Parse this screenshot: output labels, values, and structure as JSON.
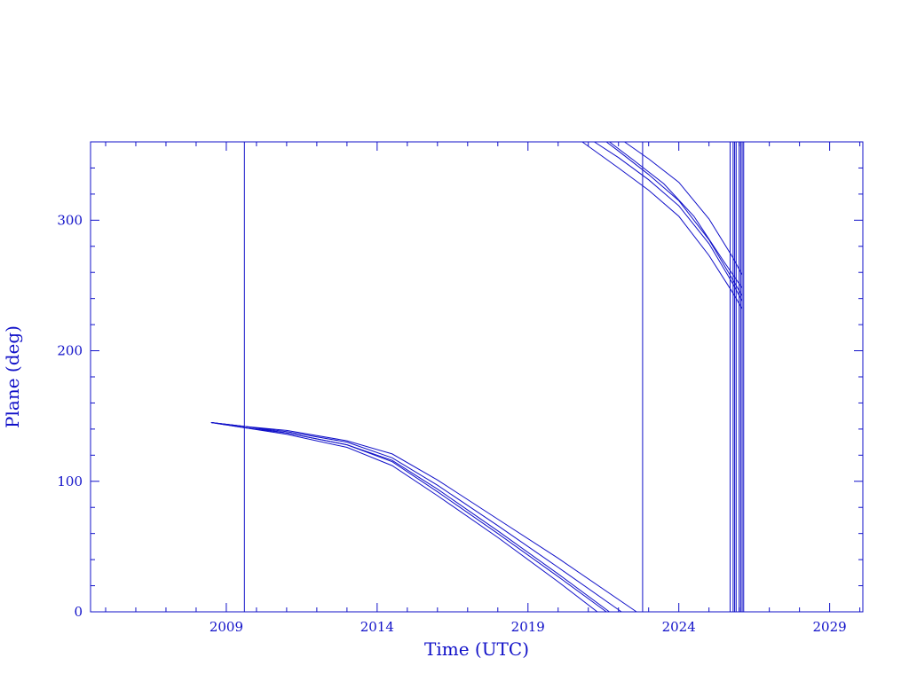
{
  "chart_data": {
    "type": "line",
    "title": "",
    "xlabel": "Time (UTC)",
    "ylabel": "Plane (deg)",
    "xlim": [
      2004.5,
      2030.1
    ],
    "ylim": [
      0,
      360
    ],
    "x_ticks": [
      2009,
      2014,
      2019,
      2024,
      2029
    ],
    "x_tick_labels": [
      "2009",
      "2014",
      "2019",
      "2024",
      "2029"
    ],
    "y_ticks": [
      0,
      100,
      200,
      300
    ],
    "y_tick_labels": [
      "0",
      "100",
      "200",
      "300"
    ],
    "grid": false,
    "legend": "none",
    "color": "#1010c8",
    "vertical_markers": [
      2009.6,
      2022.8,
      2025.7,
      2025.8,
      2025.85,
      2025.9,
      2026.0,
      2026.05,
      2026.1,
      2026.15
    ],
    "series": [
      {
        "x": [
          2008.5,
          2009.6,
          2011,
          2013,
          2014.5,
          2016,
          2018,
          2020,
          2021.3
        ],
        "y": [
          145,
          141,
          136,
          126,
          112,
          89,
          57,
          23,
          0
        ]
      },
      {
        "x": [
          2008.5,
          2009.6,
          2011,
          2013,
          2014.5,
          2016,
          2018,
          2020,
          2021.6
        ],
        "y": [
          145,
          141,
          137,
          128,
          115,
          92,
          60,
          27,
          0
        ]
      },
      {
        "x": [
          2008.5,
          2009.6,
          2011,
          2013,
          2014.5,
          2016,
          2018,
          2020,
          2021.7
        ],
        "y": [
          145,
          142,
          137,
          128,
          116,
          94,
          62,
          29,
          0
        ]
      },
      {
        "x": [
          2008.5,
          2009.6,
          2011,
          2013,
          2014.5,
          2016,
          2018,
          2020,
          2022.1
        ],
        "y": [
          145,
          142,
          138,
          130,
          118,
          97,
          66,
          34,
          0
        ]
      },
      {
        "x": [
          2008.5,
          2009.6,
          2011,
          2013,
          2014.5,
          2016,
          2018,
          2020,
          2022.6
        ],
        "y": [
          145,
          142,
          139,
          131,
          121,
          101,
          71,
          41,
          0
        ]
      },
      {
        "x": [
          2020.8,
          2022,
          2023,
          2024,
          2025,
          2025.8,
          2026.1
        ],
        "y": [
          360,
          340,
          323,
          303,
          273,
          244,
          232
        ]
      },
      {
        "x": [
          2021.2,
          2022,
          2023,
          2024,
          2025,
          2025.8,
          2026.1
        ],
        "y": [
          360,
          348,
          331,
          311,
          282,
          251,
          238
        ]
      },
      {
        "x": [
          2021.6,
          2022,
          2023,
          2024,
          2025,
          2025.8,
          2026.1
        ],
        "y": [
          360,
          353,
          335,
          315,
          285,
          254,
          242
        ]
      },
      {
        "x": [
          2022.2,
          2023,
          2024,
          2025,
          2025.8,
          2026.1
        ],
        "y": [
          360,
          347,
          329,
          301,
          271,
          258
        ]
      },
      {
        "x": [
          2021.7,
          2022.5,
          2023.5,
          2024.5,
          2025.5,
          2026.1
        ],
        "y": [
          360,
          346,
          328,
          303,
          268,
          248
        ]
      }
    ]
  }
}
